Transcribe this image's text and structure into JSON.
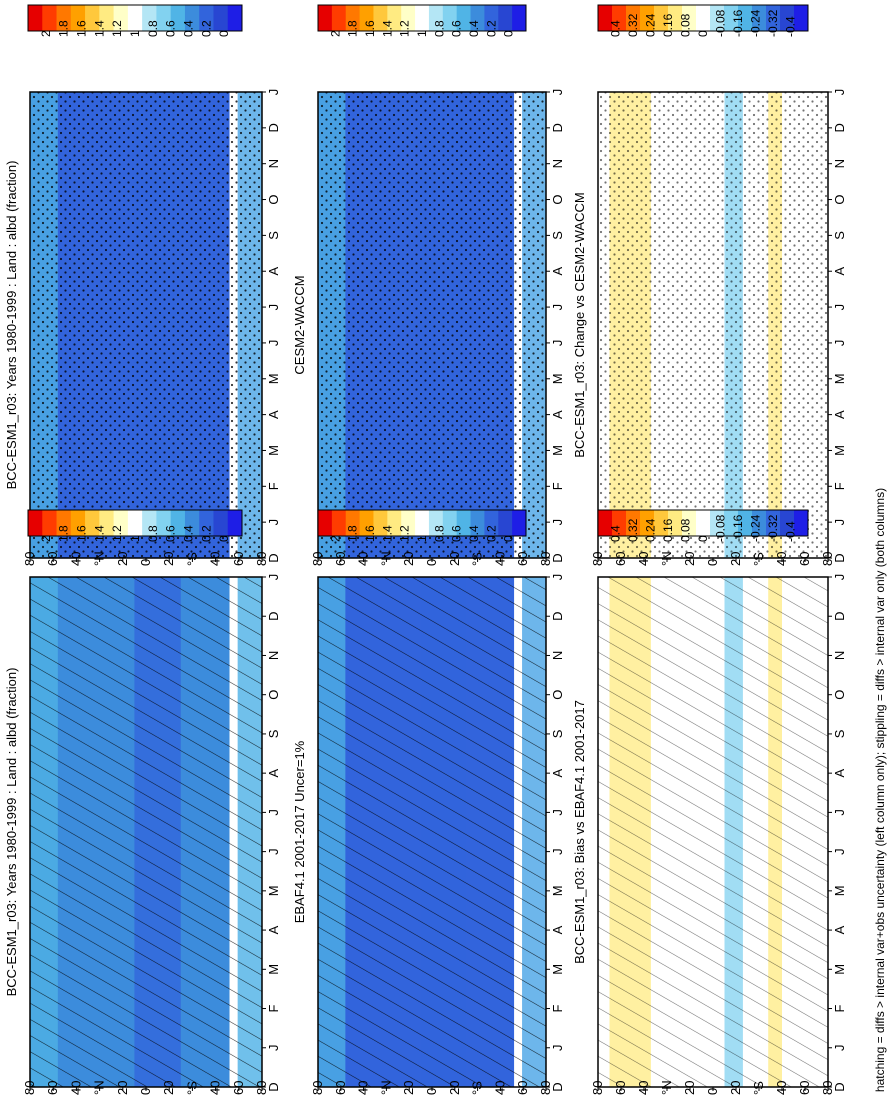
{
  "footer": "hatching = diffs > internal var+obs uncertainty (left column only); stippling = diffs > internal var only (both columns)",
  "colors": {
    "ratio_scale": [
      "#e60000",
      "#ff3c00",
      "#ff7800",
      "#ffa000",
      "#ffc83c",
      "#ffeb82",
      "#ffffc8",
      "#ffffff",
      "#b4e6f5",
      "#82d2f0",
      "#50b4e6",
      "#3c8cdc",
      "#3264dc",
      "#2846d2",
      "#1e1ee6"
    ],
    "diff_scale": [
      "#e60000",
      "#ff3c00",
      "#ff7800",
      "#ffa000",
      "#ffc83c",
      "#ffeb82",
      "#ffffc8",
      "#ffffff",
      "#b4e6f5",
      "#82d2f0",
      "#50b4e6",
      "#3c8cdc",
      "#3264dc",
      "#2846d2",
      "#1e1ee6"
    ]
  },
  "chart_data": [
    {
      "type": "heatmap",
      "title": "BCC-ESM1_r03: Years 1980-1999 : Land : albd (fraction)",
      "x": [
        "D",
        "J",
        "F",
        "M",
        "A",
        "M",
        "J",
        "J",
        "A",
        "S",
        "O",
        "N",
        "D",
        "J"
      ],
      "y_ticks": [
        "80",
        "60",
        "40",
        "°N",
        "20",
        "0",
        "20",
        "°S",
        "40",
        "60",
        "80"
      ],
      "legend_ticks": [
        "2",
        "1.8",
        "1.6",
        "1.4",
        "1.2",
        "1",
        "0.8",
        "0.6",
        "0.4",
        "0.2",
        "0"
      ],
      "overlay": "hatching"
    },
    {
      "type": "heatmap",
      "title": "BCC-ESM1_r03: Years 1980-1999 : Land : albd (fraction)",
      "x": [
        "D",
        "J",
        "F",
        "M",
        "A",
        "M",
        "J",
        "J",
        "A",
        "S",
        "O",
        "N",
        "D",
        "J"
      ],
      "y_ticks": [
        "80",
        "60",
        "40",
        "°N",
        "20",
        "0",
        "20",
        "°S",
        "40",
        "60",
        "80"
      ],
      "legend_ticks": [
        "2",
        "1.8",
        "1.6",
        "1.4",
        "1.2",
        "1",
        "0.8",
        "0.6",
        "0.4",
        "0.2",
        "0"
      ],
      "overlay": "stippling"
    },
    {
      "type": "heatmap",
      "title": "EBAF4.1 2001-2017 Uncer=1%",
      "x": [
        "D",
        "J",
        "F",
        "M",
        "A",
        "M",
        "J",
        "J",
        "A",
        "S",
        "O",
        "N",
        "D",
        "J"
      ],
      "y_ticks": [
        "80",
        "60",
        "40",
        "°N",
        "20",
        "0",
        "20",
        "°S",
        "40",
        "60",
        "80"
      ],
      "legend_ticks": [
        "2",
        "1.8",
        "1.6",
        "1.4",
        "1.2",
        "1",
        "0.8",
        "0.6",
        "0.4",
        "0.2",
        "0"
      ],
      "overlay": "hatching"
    },
    {
      "type": "heatmap",
      "title": "CESM2-WACCM",
      "x": [
        "D",
        "J",
        "F",
        "M",
        "A",
        "M",
        "J",
        "J",
        "A",
        "S",
        "O",
        "N",
        "D",
        "J"
      ],
      "y_ticks": [
        "80",
        "60",
        "40",
        "°N",
        "20",
        "0",
        "20",
        "°S",
        "40",
        "60",
        "80"
      ],
      "legend_ticks": [
        "2",
        "1.8",
        "1.6",
        "1.4",
        "1.2",
        "1",
        "0.8",
        "0.6",
        "0.4",
        "0.2",
        "0"
      ],
      "overlay": "stippling"
    },
    {
      "type": "heatmap",
      "title": "BCC-ESM1_r03: Bias vs EBAF4.1 2001-2017",
      "x": [
        "D",
        "J",
        "F",
        "M",
        "A",
        "M",
        "J",
        "J",
        "A",
        "S",
        "O",
        "N",
        "D",
        "J"
      ],
      "y_ticks": [
        "80",
        "60",
        "40",
        "°N",
        "20",
        "0",
        "20",
        "°S",
        "40",
        "60",
        "80"
      ],
      "legend_ticks": [
        "0.4",
        "0.32",
        "0.24",
        "0.16",
        "0.08",
        "0",
        "-0.08",
        "-0.16",
        "-0.24",
        "-0.32",
        "-0.4"
      ],
      "overlay": "hatching"
    },
    {
      "type": "heatmap",
      "title": "BCC-ESM1_r03: Change vs CESM2-WACCM",
      "x": [
        "D",
        "J",
        "F",
        "M",
        "A",
        "M",
        "J",
        "J",
        "A",
        "S",
        "O",
        "N",
        "D",
        "J"
      ],
      "y_ticks": [
        "80",
        "60",
        "40",
        "°N",
        "20",
        "0",
        "20",
        "°S",
        "40",
        "60",
        "80"
      ],
      "legend_ticks": [
        "0.4",
        "0.32",
        "0.24",
        "0.16",
        "0.08",
        "0",
        "-0.08",
        "-0.16",
        "-0.24",
        "-0.32",
        "-0.4"
      ],
      "overlay": "stippling"
    }
  ]
}
